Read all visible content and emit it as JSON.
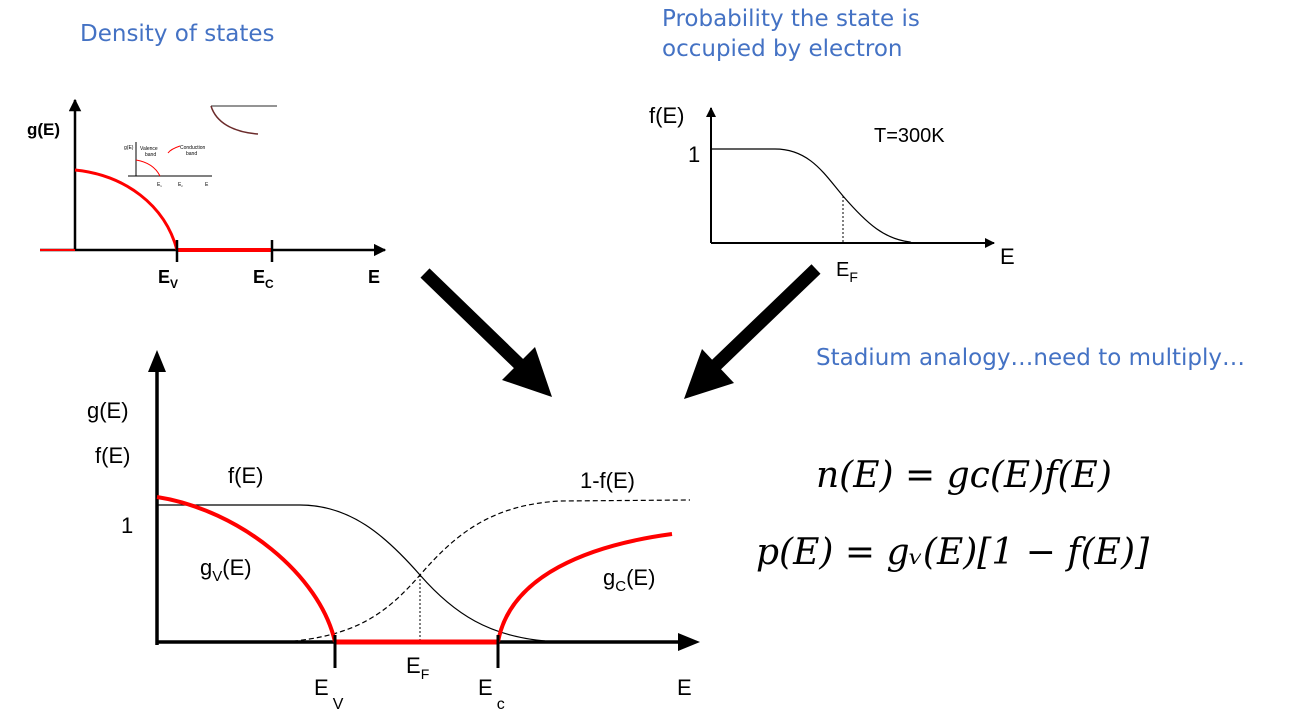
{
  "titles": {
    "density": "Density of states",
    "probability_line1": "Probability the state is",
    "probability_line2": "occupied by electron",
    "stadium": "Stadium analogy…need to multiply…"
  },
  "dos_plot": {
    "ylabel": "g(E)",
    "ev": "E",
    "ev_sub": "V",
    "ec": "E",
    "ec_sub": "C",
    "xlabel": "E",
    "inset": {
      "ylabel": "g(E)",
      "valence": "Valence",
      "valence2": "band",
      "conduction": "Conduction",
      "conduction2": "band",
      "ev": "E",
      "ev_sub": "v",
      "ec": "E",
      "ec_sub": "c",
      "e": "E"
    }
  },
  "fermi_plot": {
    "ylabel": "f(E)",
    "one": "1",
    "temp": "T=300K",
    "ef": "E",
    "ef_sub": "F",
    "xlabel": "E"
  },
  "combined_plot": {
    "ylabel1": "g(E)",
    "ylabel2": "f(E)",
    "one": "1",
    "fe": "f(E)",
    "one_minus_fe": "1-f(E)",
    "gv": "g",
    "gv_sub": "V",
    "gv_tail": "(E)",
    "gc": "g",
    "gc_sub": "C",
    "gc_tail": "(E)",
    "ev": "E",
    "ev_sub": "V",
    "ef": "E",
    "ef_sub": "F",
    "ec": "E",
    "ec_sub": "c",
    "xlabel": "E"
  },
  "equations": {
    "n": "n(E) = gᴄ(E)f(E)",
    "p": "p(E) = gᵥ(E)[1 − f(E)]"
  },
  "colors": {
    "title_blue": "#4472c4",
    "curve_red": "#ff0000"
  }
}
